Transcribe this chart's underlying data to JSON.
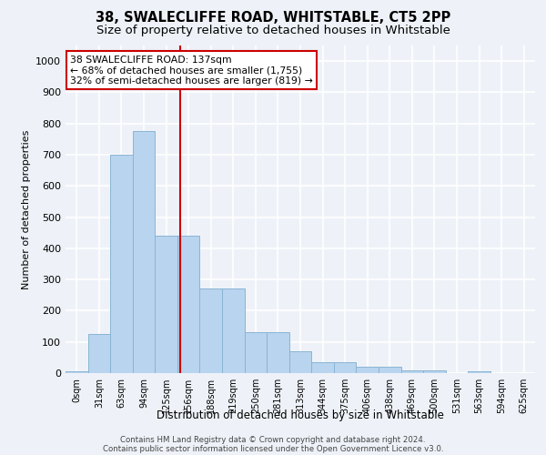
{
  "title1": "38, SWALECLIFFE ROAD, WHITSTABLE, CT5 2PP",
  "title2": "Size of property relative to detached houses in Whitstable",
  "xlabel": "Distribution of detached houses by size in Whitstable",
  "ylabel": "Number of detached properties",
  "bar_values": [
    5,
    125,
    700,
    775,
    440,
    440,
    270,
    270,
    130,
    130,
    70,
    35,
    35,
    20,
    20,
    10,
    10,
    0,
    5,
    0,
    0
  ],
  "bin_labels": [
    "0sqm",
    "31sqm",
    "63sqm",
    "94sqm",
    "125sqm",
    "156sqm",
    "188sqm",
    "219sqm",
    "250sqm",
    "281sqm",
    "313sqm",
    "344sqm",
    "375sqm",
    "406sqm",
    "438sqm",
    "469sqm",
    "500sqm",
    "531sqm",
    "563sqm",
    "594sqm",
    "625sqm"
  ],
  "bar_color": "#b8d4ee",
  "bar_edge_color": "#8ab4d4",
  "vline_x": 4.62,
  "vline_color": "#cc0000",
  "annotation_text": "38 SWALECLIFFE ROAD: 137sqm\n← 68% of detached houses are smaller (1,755)\n32% of semi-detached houses are larger (819) →",
  "annotation_box_color": "#ffffff",
  "annotation_box_edge": "#cc0000",
  "ylim": [
    0,
    1050
  ],
  "yticks": [
    0,
    100,
    200,
    300,
    400,
    500,
    600,
    700,
    800,
    900,
    1000
  ],
  "footer1": "Contains HM Land Registry data © Crown copyright and database right 2024.",
  "footer2": "Contains public sector information licensed under the Open Government Licence v3.0.",
  "bg_color": "#eef2f8",
  "grid_color": "#ffffff",
  "title_fontsize": 10.5,
  "subtitle_fontsize": 9.5
}
